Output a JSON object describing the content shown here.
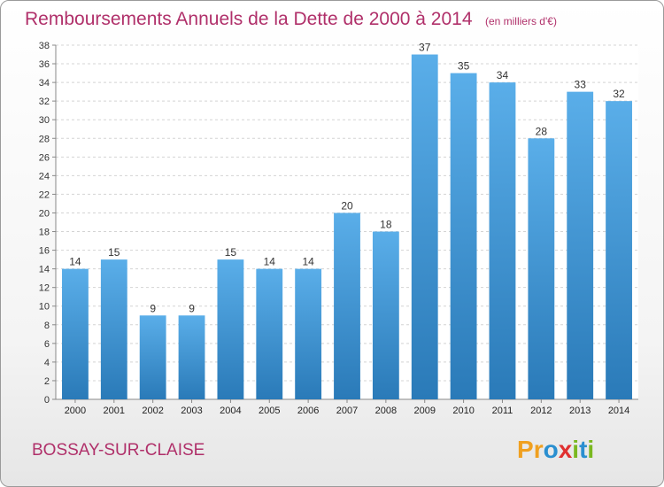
{
  "chart_data": {
    "type": "bar",
    "title": "Remboursements Annuels de la Dette de 2000 à 2014",
    "subtitle": "(en milliers d'€)",
    "categories": [
      "2000",
      "2001",
      "2002",
      "2003",
      "2004",
      "2005",
      "2006",
      "2007",
      "2008",
      "2009",
      "2010",
      "2011",
      "2012",
      "2013",
      "2014"
    ],
    "values": [
      14,
      15,
      9,
      9,
      15,
      14,
      14,
      20,
      18,
      37,
      35,
      34,
      28,
      33,
      32
    ],
    "ylim": [
      0,
      38
    ],
    "yticks": [
      0,
      2,
      4,
      6,
      8,
      10,
      12,
      14,
      16,
      18,
      20,
      22,
      24,
      26,
      28,
      30,
      32,
      34,
      36,
      38
    ],
    "grid": true,
    "bar_color_top": "#5aaee9",
    "bar_color_bottom": "#2a7ab8"
  },
  "footer": {
    "commune": "BOSSAY-SUR-CLAISE",
    "logo_letters": [
      {
        "char": "P",
        "color": "#f0a020"
      },
      {
        "char": "r",
        "color": "#f0a020"
      },
      {
        "char": "o",
        "color": "#2a8fd0"
      },
      {
        "char": "x",
        "color": "#e03030"
      },
      {
        "char": "i",
        "color": "#7ab820"
      },
      {
        "char": "t",
        "color": "#2a8fd0"
      },
      {
        "char": "i",
        "color": "#7ab820"
      }
    ]
  }
}
